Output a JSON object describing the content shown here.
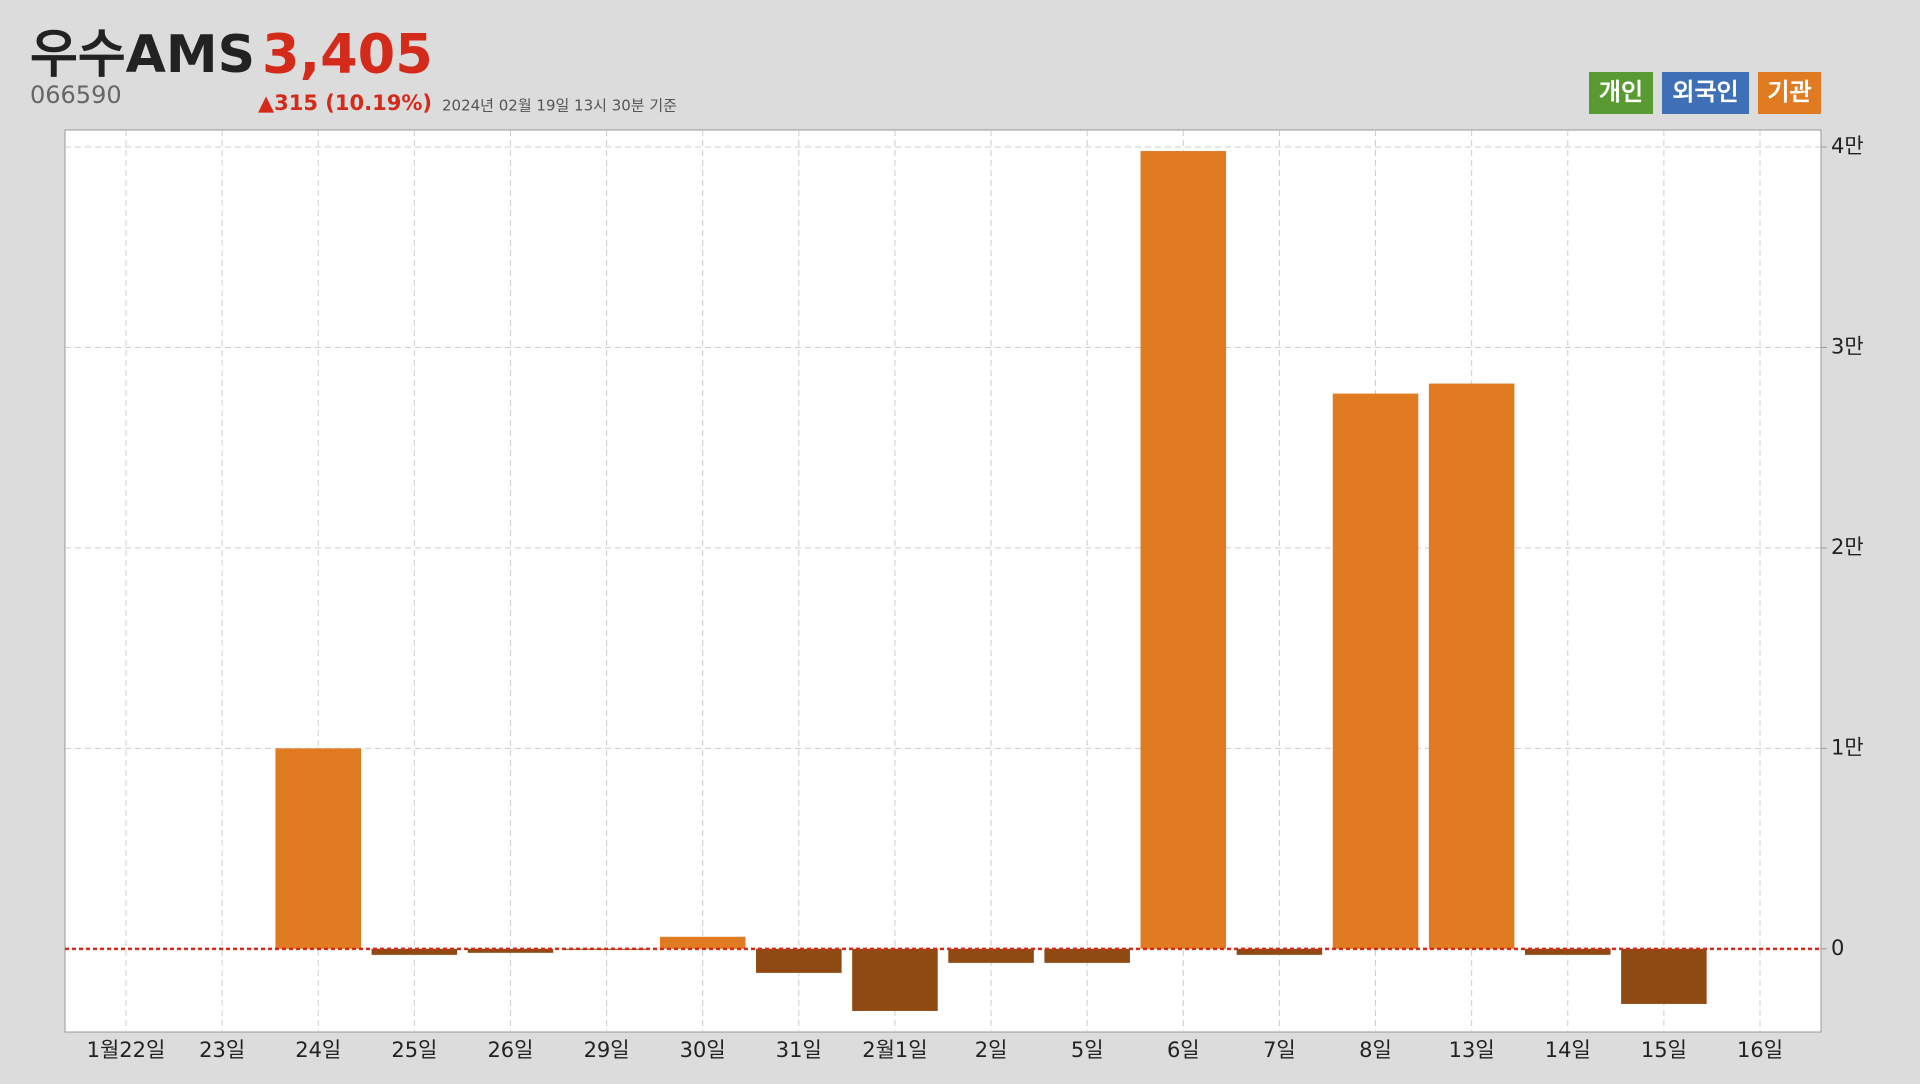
{
  "header": {
    "name": "우수AMS",
    "price": "3,405",
    "code": "066590",
    "change": "▲315 (10.19%)",
    "timestamp": "2024년 02월 19일 13시 30분 기준"
  },
  "chart_data": {
    "type": "bar",
    "legend": [
      {
        "label": "개인",
        "color": "#5a9a32"
      },
      {
        "label": "외국인",
        "color": "#3f6fb4"
      },
      {
        "label": "기관",
        "color": "#e07b22"
      }
    ],
    "categories": [
      "1월22일",
      "23일",
      "24일",
      "25일",
      "26일",
      "29일",
      "30일",
      "31일",
      "2월1일",
      "2일",
      "5일",
      "6일",
      "7일",
      "8일",
      "13일",
      "14일",
      "15일",
      "16일"
    ],
    "values": [
      0,
      0,
      10000,
      -300,
      -200,
      -50,
      600,
      -1200,
      -3100,
      -700,
      -700,
      39800,
      -300,
      27700,
      28200,
      -300,
      -2750,
      0
    ],
    "color": "#e07b22",
    "negative_color": "#8f4a14",
    "ylim": [
      -4150,
      40850
    ],
    "yticks": [
      0,
      {
        "value": 10000,
        "label": "1만"
      },
      {
        "value": 20000,
        "label": "2만"
      },
      {
        "value": 30000,
        "label": "3만"
      },
      {
        "value": 40000,
        "label": "4만"
      }
    ],
    "grid": true,
    "zero_line_color": "#d42a1a"
  }
}
